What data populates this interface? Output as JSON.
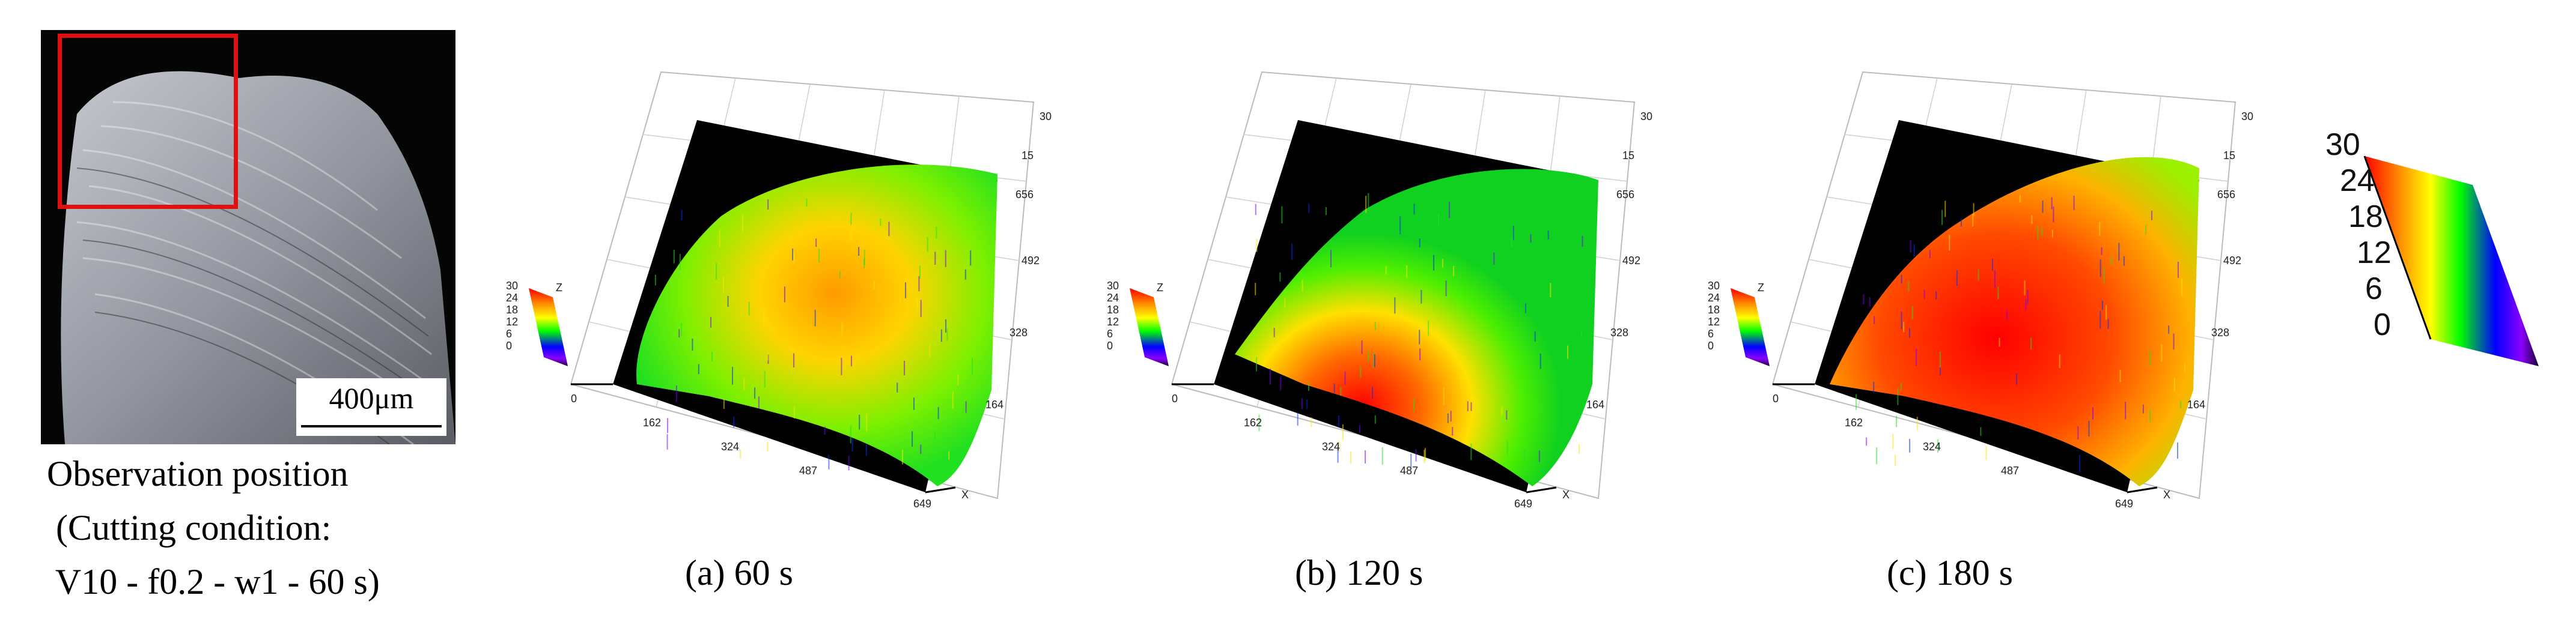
{
  "micrograph": {
    "scale_bar_label": "400μm",
    "caption_lines": [
      "Observation position",
      " (Cutting condition:",
      " V10 - f0.2 - w1 - 60 s)"
    ]
  },
  "panels": [
    {
      "caption": "(a) 60 s",
      "y_ticks": [
        "656",
        "492",
        "328",
        "164"
      ],
      "x_ticks": [
        "0",
        "162",
        "324",
        "487",
        "649"
      ],
      "z_ticks": [
        "30",
        "15"
      ],
      "mini_colorbar_ticks": [
        "30",
        "24",
        "18",
        "12",
        "6",
        "0"
      ],
      "axis_x": "X",
      "axis_z": "Z"
    },
    {
      "caption": "(b) 120 s",
      "y_ticks": [
        "656",
        "492",
        "328",
        "164"
      ],
      "x_ticks": [
        "0",
        "162",
        "324",
        "487",
        "649"
      ],
      "z_ticks": [
        "30",
        "15"
      ],
      "mini_colorbar_ticks": [
        "30",
        "24",
        "18",
        "12",
        "6",
        "0"
      ],
      "axis_x": "X",
      "axis_z": "Z"
    },
    {
      "caption": "(c) 180 s",
      "y_ticks": [
        "656",
        "492",
        "328",
        "164"
      ],
      "x_ticks": [
        "0",
        "162",
        "324",
        "487",
        "649"
      ],
      "z_ticks": [
        "30",
        "15"
      ],
      "mini_colorbar_ticks": [
        "30",
        "24",
        "18",
        "12",
        "6",
        "0"
      ],
      "axis_x": "X",
      "axis_z": "Z"
    }
  ],
  "colorbar": {
    "ticks": [
      "30",
      "24",
      "18",
      "12",
      "6",
      "0"
    ],
    "colors": [
      "#ff0000",
      "#ff8c00",
      "#ffff00",
      "#00ff00",
      "#0000ff",
      "#8b00ff",
      "#1a0033"
    ]
  }
}
